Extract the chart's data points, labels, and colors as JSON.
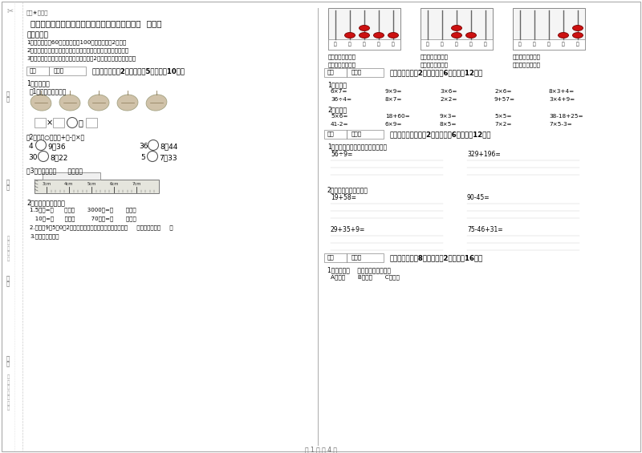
{
  "title": "黑龙江省实验小学二年级数学下学期自我检测试卷  附答案",
  "subtitle": "组卷★自用圈",
  "notice_title": "考试须知：",
  "notices": [
    "1、考试时间：60分钟，满分为100分（含卷面分2分）。",
    "2、请首先按要求在试卷的指定位置填写您的姓名、班级、学号。",
    "3、不要在试卷上乱写乱画，卷面不整洁扣2分，密封线外请勿作答。"
  ],
  "section1_title": "一、填空题（共2大题，每题5分，共计10分）",
  "circle_label": "（2）、在○里填上+、-或×。",
  "ruler_problem": "（3）、纸条长（      ）厘米。",
  "section2_content": [
    "1.5厘米=（      ）毫米       3000米=（       ）千米",
    "   10米=（      ）分米         70毫米=（       ）厘米",
    "2.用数字9、5、0、2组成不同的四位数，其中最大的数是（     ），最小的是（     ）",
    "3.读写下列各数。"
  ],
  "section3_title": "二、计算题（共2大题，每题6分，共计12分）",
  "calc1_title": "1、口算。",
  "calc1_row1": [
    "6×7=",
    "9×9=",
    "3×6=",
    "2×6=",
    "8×3+4="
  ],
  "calc1_row2": [
    "36÷4=",
    "8×7=",
    "2×2=",
    "9+57=",
    "3×4+9="
  ],
  "calc2_title": "2、口算。",
  "calc2_row1": [
    "5×6=",
    "18+60=",
    "9×3=",
    "5×5=",
    "38-18+25="
  ],
  "calc2_row2": [
    "41-2=",
    "6×9=",
    "8×5=",
    "7×2=",
    "7×5-3="
  ],
  "section4_title": "三、列竖式计算（共2大题，每题6分，共计12分）",
  "vertical1_title": "1、用竖式计算，带弧的题要验算。",
  "vertical1_problems": [
    "56÷9=",
    "329+196="
  ],
  "vertical2_title": "2、列出竖式下面各题。",
  "vertical2_problems": [
    "19+58=",
    "90-45=",
    "29+35+9=",
    "75-46+31="
  ],
  "section5_title": "四、选一选（共8大题，每题2分，共计16分）",
  "section5_q1": "1、所有的（    ）大小都是相等的。",
  "section5_q1_options": "A、锐角       B、直角       C、钝角",
  "page_footer": "第 1 页 共 4 页",
  "abacus_beads": [
    [
      0,
      1,
      2,
      1,
      1
    ],
    [
      0,
      0,
      2,
      1,
      0
    ],
    [
      0,
      0,
      0,
      1,
      2
    ]
  ],
  "bg_color": "#ffffff",
  "text_color": "#000000",
  "border_color": "#888888",
  "red_color": "#cc2222",
  "gray_color": "#cccccc",
  "light_gray": "#eeeeee"
}
